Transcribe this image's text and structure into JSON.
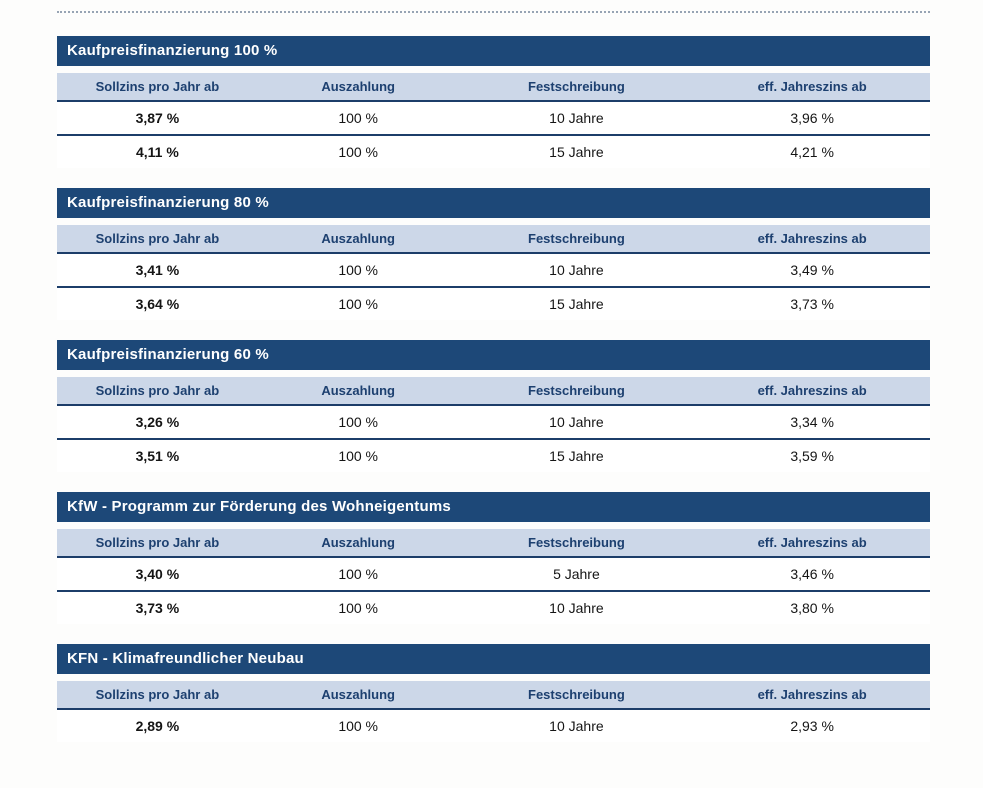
{
  "page": {
    "kind": "rate-conditions-sheet",
    "accent_dark_blue": "#1d4878",
    "accent_light_blue": "#ccd7e8",
    "header_text_color": "#1d4070",
    "rule_color": "#97a4b4"
  },
  "columns": [
    "Sollzins pro Jahr ab",
    "Auszahlung",
    "Festschreibung",
    "eff. Jahreszins ab"
  ],
  "tables": [
    {
      "title": "Kaufpreisfinanzierung 100 %",
      "rows": [
        [
          "3,87 %",
          "100 %",
          "10 Jahre",
          "3,96 %"
        ],
        [
          "4,11 %",
          "100 %",
          "15 Jahre",
          "4,21 %"
        ]
      ]
    },
    {
      "title": "Kaufpreisfinanzierung 80 %",
      "rows": [
        [
          "3,41 %",
          "100 %",
          "10 Jahre",
          "3,49 %"
        ],
        [
          "3,64 %",
          "100 %",
          "15 Jahre",
          "3,73 %"
        ]
      ]
    },
    {
      "title": "Kaufpreisfinanzierung 60 %",
      "rows": [
        [
          "3,26 %",
          "100 %",
          "10 Jahre",
          "3,34 %"
        ],
        [
          "3,51 %",
          "100 %",
          "15 Jahre",
          "3,59 %"
        ]
      ]
    },
    {
      "title": "KfW - Programm zur Förderung des Wohneigentums",
      "rows": [
        [
          "3,40 %",
          "100 %",
          "5 Jahre",
          "3,46 %"
        ],
        [
          "3,73 %",
          "100 %",
          "10 Jahre",
          "3,80 %"
        ]
      ]
    },
    {
      "title": "KFN - Klimafreundlicher Neubau",
      "rows": [
        [
          "2,89 %",
          "100 %",
          "10 Jahre",
          "2,93 %"
        ]
      ]
    }
  ]
}
